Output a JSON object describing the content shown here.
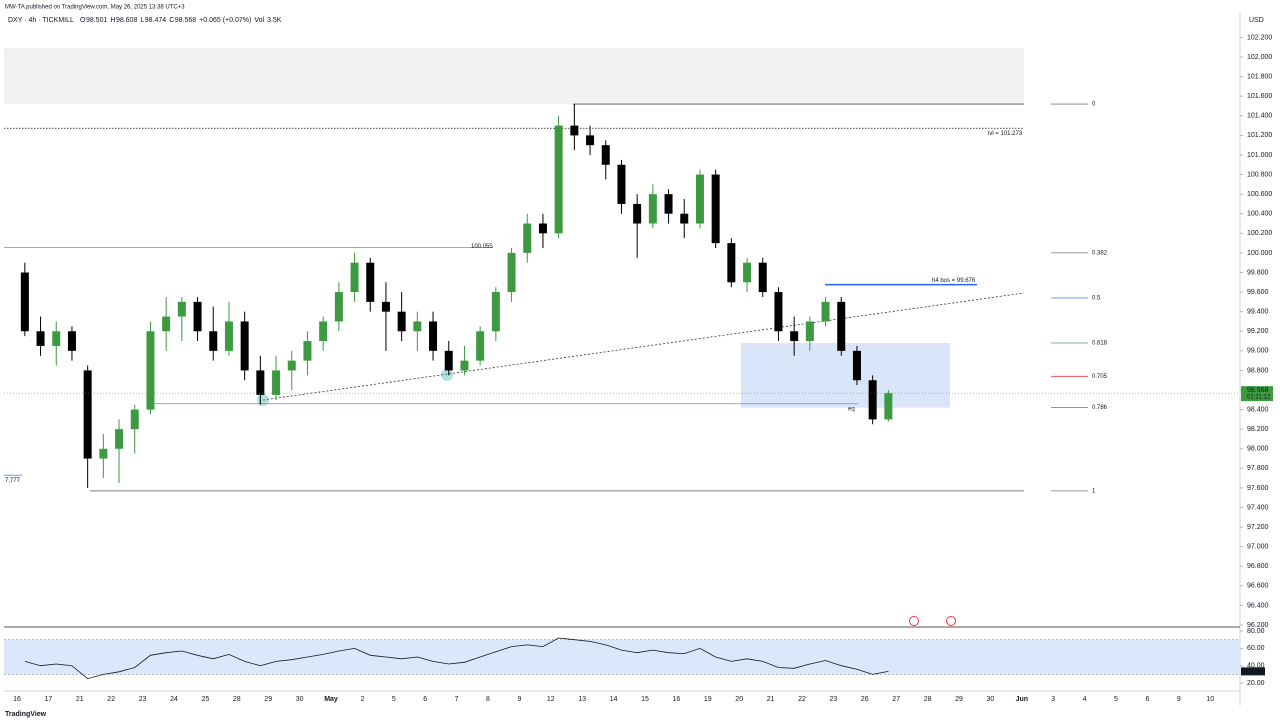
{
  "header": {
    "byline": "MW-TA published on TradingView.com, May 26, 2025 13:38 UTC+3",
    "symbol": "DXY · 4h · TICKMILL",
    "ohlc": [
      "O",
      "98.501",
      "H",
      "98.608",
      "L",
      "98.474",
      "C",
      "98.568",
      "+0.065 (+0.07%)",
      "Vol",
      "3.5K"
    ],
    "currency": "USD",
    "countdown": "01:21:12",
    "footer": "TradingView"
  },
  "chart_data": [
    {
      "type": "candlestick",
      "up_color": "#3d9a40",
      "down_color": "#000000",
      "categories": [
        "16",
        null,
        "17",
        null,
        "21",
        null,
        "22",
        null,
        "23",
        null,
        "24",
        null,
        "25",
        null,
        "28",
        null,
        "29",
        null,
        "30",
        null,
        "May",
        null,
        "2",
        null,
        "5",
        null,
        "6",
        null,
        "7",
        null,
        "8",
        null,
        "9",
        null,
        "12",
        null,
        "13",
        null,
        "14",
        null,
        "15",
        null,
        "16",
        null,
        "19",
        null,
        "20",
        null,
        "21",
        null,
        "22",
        null,
        "23",
        null,
        "26",
        null,
        "27",
        null,
        "28",
        null,
        "29",
        null,
        "30",
        null,
        "Jun",
        null,
        "3",
        null,
        "4",
        null,
        "5",
        null,
        "6",
        null,
        "9",
        null,
        "10",
        null
      ],
      "open": [
        99.8,
        99.2,
        99.05,
        99.2,
        98.8,
        97.9,
        98.0,
        98.2,
        98.4,
        99.2,
        99.35,
        99.5,
        99.2,
        99.0,
        99.3,
        98.8,
        98.55,
        98.8,
        98.9,
        99.1,
        99.3,
        99.6,
        99.9,
        99.5,
        99.4,
        99.2,
        99.3,
        99.0,
        98.8,
        98.9,
        99.2,
        99.6,
        100.0,
        100.3,
        100.2,
        101.3,
        101.2,
        101.1,
        100.9,
        100.5,
        100.3,
        100.6,
        100.4,
        100.3,
        100.8,
        100.1,
        99.7,
        99.9,
        99.6,
        99.2,
        99.1,
        99.3,
        99.5,
        99.0,
        98.7,
        98.3,
        null,
        null,
        null,
        null,
        null,
        null,
        null,
        null,
        null,
        null,
        null,
        null,
        null,
        null,
        null,
        null,
        null,
        null,
        null,
        null,
        null,
        null
      ],
      "high": [
        99.9,
        99.35,
        99.3,
        99.25,
        98.85,
        98.15,
        98.3,
        98.45,
        99.3,
        99.55,
        99.55,
        99.55,
        99.45,
        99.5,
        99.4,
        98.95,
        98.95,
        99.0,
        99.2,
        99.35,
        99.7,
        100.0,
        99.95,
        99.7,
        99.6,
        99.4,
        99.4,
        99.1,
        99.05,
        99.25,
        99.65,
        100.05,
        100.4,
        100.4,
        101.4,
        101.52,
        101.3,
        101.15,
        100.95,
        100.6,
        100.7,
        100.65,
        100.55,
        100.85,
        100.85,
        100.15,
        99.95,
        99.95,
        99.65,
        99.35,
        99.35,
        99.55,
        99.55,
        99.05,
        98.75,
        98.6,
        null,
        null,
        null,
        null,
        null,
        null,
        null,
        null,
        null,
        null,
        null,
        null,
        null,
        null,
        null,
        null,
        null,
        null,
        null,
        null,
        null,
        null
      ],
      "low": [
        99.15,
        98.95,
        98.85,
        98.9,
        97.6,
        97.7,
        97.65,
        97.95,
        98.35,
        99.0,
        99.1,
        99.1,
        98.9,
        98.95,
        98.7,
        98.45,
        98.5,
        98.6,
        98.75,
        99.0,
        99.2,
        99.5,
        99.4,
        99.0,
        99.1,
        99.0,
        98.9,
        98.75,
        98.75,
        98.85,
        99.1,
        99.5,
        99.9,
        100.05,
        100.15,
        101.05,
        101.0,
        100.75,
        100.4,
        99.95,
        100.25,
        100.3,
        100.15,
        100.25,
        100.05,
        99.65,
        99.6,
        99.55,
        99.1,
        98.95,
        99.0,
        99.25,
        98.95,
        98.65,
        98.25,
        98.28,
        null,
        null,
        null,
        null,
        null,
        null,
        null,
        null,
        null,
        null,
        null,
        null,
        null,
        null,
        null,
        null,
        null,
        null,
        null,
        null,
        null,
        null
      ],
      "close": [
        99.2,
        99.05,
        99.2,
        99.0,
        97.9,
        98.0,
        98.2,
        98.4,
        99.2,
        99.35,
        99.5,
        99.2,
        99.0,
        99.3,
        98.8,
        98.55,
        98.8,
        98.9,
        99.1,
        99.3,
        99.6,
        99.9,
        99.5,
        99.4,
        99.2,
        99.3,
        99.0,
        98.8,
        98.9,
        99.2,
        99.6,
        100.0,
        100.3,
        100.2,
        101.3,
        101.2,
        101.1,
        100.9,
        100.5,
        100.3,
        100.6,
        100.4,
        100.3,
        100.8,
        100.1,
        99.7,
        99.9,
        99.6,
        99.2,
        99.1,
        99.3,
        99.5,
        99.0,
        98.7,
        98.3,
        98.568,
        null,
        null,
        null,
        null,
        null,
        null,
        null,
        null,
        null,
        null,
        null,
        null,
        null,
        null,
        null,
        null,
        null,
        null,
        null,
        null,
        null,
        null
      ],
      "last_price": {
        "value": 98.568,
        "label": "98.568"
      },
      "ylim": [
        96.18,
        102.46
      ],
      "yticks": [
        {
          "value": 96.2,
          "label": "96.200"
        },
        {
          "value": 96.4,
          "label": "96.400"
        },
        {
          "value": 96.6,
          "label": "96.600"
        },
        {
          "value": 96.8,
          "label": "96.800"
        },
        {
          "value": 97.0,
          "label": "97.000"
        },
        {
          "value": 97.2,
          "label": "97.200"
        },
        {
          "value": 97.4,
          "label": "97.400"
        },
        {
          "value": 97.6,
          "label": "97.600"
        },
        {
          "value": 97.8,
          "label": "97.800"
        },
        {
          "value": 98.0,
          "label": "98.000"
        },
        {
          "value": 98.2,
          "label": "98.200"
        },
        {
          "value": 98.4,
          "label": "98.400"
        },
        {
          "value": 98.6,
          "label": "98.600"
        },
        {
          "value": 98.8,
          "label": "98.800"
        },
        {
          "value": 99.0,
          "label": "99.000"
        },
        {
          "value": 99.2,
          "label": "99.200"
        },
        {
          "value": 99.4,
          "label": "99.400"
        },
        {
          "value": 99.6,
          "label": "99.600"
        },
        {
          "value": 99.8,
          "label": "99.800"
        },
        {
          "value": 100.0,
          "label": "100.000"
        },
        {
          "value": 100.2,
          "label": "100.200"
        },
        {
          "value": 100.4,
          "label": "100.400"
        },
        {
          "value": 100.6,
          "label": "100.600"
        },
        {
          "value": 100.8,
          "label": "100.800"
        },
        {
          "value": 101.0,
          "label": "101.000"
        },
        {
          "value": 101.2,
          "label": "101.200"
        },
        {
          "value": 101.4,
          "label": "101.400"
        },
        {
          "value": 101.6,
          "label": "101.600"
        },
        {
          "value": 101.8,
          "label": "101.800"
        },
        {
          "value": 102.0,
          "label": "102.000"
        },
        {
          "value": 102.2,
          "label": "102.200"
        }
      ],
      "grid": false,
      "levels": [
        {
          "label": "100.055",
          "price": 100.055,
          "color": "#5b8def"
        },
        {
          "label": "lvl = 101.273",
          "price": 101.273,
          "color": "#131722"
        },
        {
          "label": "h4 bos = 99.676",
          "price": 99.676,
          "color": "#2962ff"
        },
        {
          "label": "eq",
          "price": 98.46,
          "color": "#5b8def"
        },
        {
          "label": "7,777",
          "price": 97.73,
          "color": "#5b8def"
        }
      ],
      "fib": [
        {
          "label": "0",
          "price": 101.52,
          "color": "#787b86"
        },
        {
          "label": "0.382",
          "price": 100.0,
          "color": "#787b86"
        },
        {
          "label": "0.5",
          "price": 99.54,
          "color": "#5b8def"
        },
        {
          "label": "0.618",
          "price": 99.08,
          "color": "#4caf50"
        },
        {
          "label": "0.705",
          "price": 98.74,
          "color": "#f23645"
        },
        {
          "label": "0.786",
          "price": 98.42,
          "color": "#f23645"
        },
        {
          "label": "1",
          "price": 97.57,
          "color": "#787b86"
        }
      ],
      "zones": [
        {
          "top": 99.08,
          "bottom": 98.42,
          "color": "#bcd0f5"
        },
        {
          "top": 102.09,
          "bottom": 101.52,
          "color": "#e6e6e6"
        }
      ]
    },
    {
      "type": "line",
      "color": "#131722",
      "values": [
        45,
        40,
        42,
        40,
        25,
        30,
        33,
        38,
        52,
        55,
        57,
        52,
        48,
        53,
        45,
        40,
        45,
        47,
        50,
        53,
        57,
        60,
        52,
        50,
        48,
        50,
        45,
        42,
        44,
        50,
        56,
        62,
        64,
        62,
        72,
        70,
        68,
        64,
        58,
        55,
        58,
        55,
        54,
        60,
        50,
        45,
        48,
        45,
        38,
        37,
        42,
        46,
        40,
        36,
        30,
        33.48,
        null,
        null,
        null,
        null,
        null,
        null,
        null,
        null,
        null,
        null,
        null,
        null,
        null,
        null,
        null,
        null,
        null,
        null,
        null,
        null,
        null,
        null
      ],
      "last_label": "33.48",
      "band": [
        30,
        70
      ],
      "ylim": [
        12,
        83.5
      ],
      "yticks": [
        {
          "value": 20,
          "label": "20.00"
        },
        {
          "value": 40,
          "label": "40.00"
        },
        {
          "value": 60,
          "label": "60.00"
        },
        {
          "value": 80,
          "label": "80.00"
        }
      ]
    }
  ]
}
